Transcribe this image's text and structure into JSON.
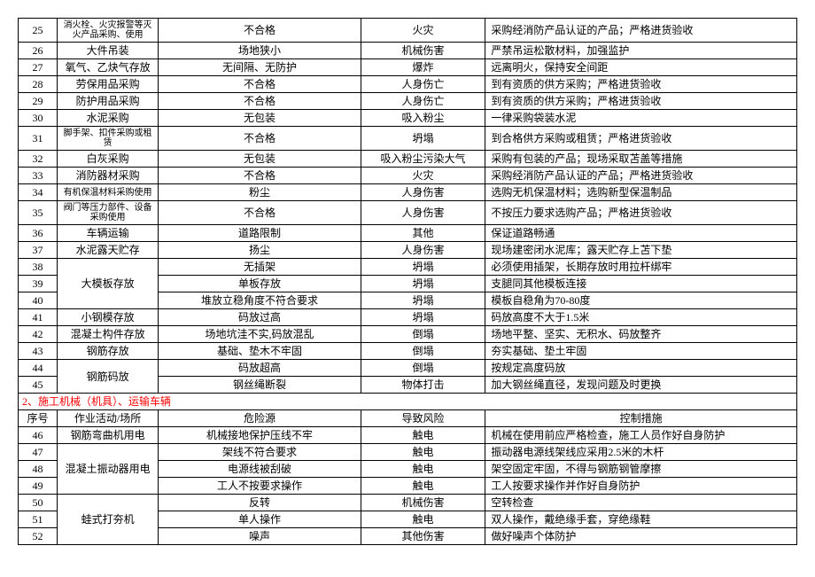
{
  "section1_rows": [
    {
      "num": "25",
      "activity": "消火栓、火灾报警等灭火产品采购、使用",
      "hazard": "不合格",
      "risk": "火灾",
      "control": "采购经消防产品认证的产品；严格进货验收",
      "activity_small": true
    },
    {
      "num": "26",
      "activity": "大件吊装",
      "hazard": "场地狭小",
      "risk": "机械伤害",
      "control": "严禁吊运松散材料，加强监护"
    },
    {
      "num": "27",
      "activity": "氧气、乙炔气存放",
      "hazard": "无间隔、无防护",
      "risk": "爆炸",
      "control": "远离明火，保持安全间距"
    },
    {
      "num": "28",
      "activity": "劳保用品采购",
      "hazard": "不合格",
      "risk": "人身伤亡",
      "control": "到有资质的供方采购；严格进货验收"
    },
    {
      "num": "29",
      "activity": "防护用品采购",
      "hazard": "不合格",
      "risk": "人身伤亡",
      "control": "到有资质的供方采购；严格进货验收"
    },
    {
      "num": "30",
      "activity": "水泥采购",
      "hazard": "无包装",
      "risk": "吸入粉尘",
      "control": "一律采购袋装水泥"
    },
    {
      "num": "31",
      "activity": "脚手架、扣件采购或租赁",
      "hazard": "不合格",
      "risk": "坍塌",
      "control": "到合格供方采购或租赁；严格进货验收",
      "activity_small": true
    },
    {
      "num": "32",
      "activity": "白灰采购",
      "hazard": "无包装",
      "risk": "吸入粉尘污染大气",
      "control": "采购有包装的产品；现场采取苫盖等措施"
    },
    {
      "num": "33",
      "activity": "消防器材采购",
      "hazard": "不合格",
      "risk": "火灾",
      "control": "采购经消防产品认证的产品；严格进货验收"
    },
    {
      "num": "34",
      "activity": "有机保温材料采购使用",
      "hazard": "粉尘",
      "risk": "人身伤害",
      "control": "选购无机保温材料；选购新型保温制品",
      "activity_small": true
    },
    {
      "num": "35",
      "activity": "阀门等压力部件、设备采购使用",
      "hazard": "不合格",
      "risk": "人身伤害",
      "control": "不按压力要求选购产品；严格进货验收",
      "activity_small": true
    },
    {
      "num": "36",
      "activity": "车辆运输",
      "hazard": "道路限制",
      "risk": "其他",
      "control": "保证道路畅通"
    },
    {
      "num": "37",
      "activity": "水泥露天贮存",
      "hazard": "扬尘",
      "risk": "人身伤害",
      "control": "现场建密闭水泥库；露天贮存上苫下垫"
    }
  ],
  "section1_merged_1": {
    "num_rows": [
      "38",
      "39",
      "40"
    ],
    "activity": "大模板存放",
    "rows": [
      {
        "hazard": "无插架",
        "risk": "坍塌",
        "control": "必须使用插架，长期存放时用拉杆绑牢"
      },
      {
        "hazard": "单板存放",
        "risk": "坍塌",
        "control": "支腿同其他模板连接"
      },
      {
        "hazard": "堆放立稳角度不符合要求",
        "risk": "坍塌",
        "control": "模板自稳角为70-80度"
      }
    ]
  },
  "section1_rows_2": [
    {
      "num": "41",
      "activity": "小钢模存放",
      "hazard": "码放过高",
      "risk": "坍塌",
      "control": "码放高度不大于1.5米"
    },
    {
      "num": "42",
      "activity": "混凝土构件存放",
      "hazard": "场地坑洼不实,码放混乱",
      "risk": "倒塌",
      "control": "场地平整、坚实、无积水、码放整齐"
    },
    {
      "num": "43",
      "activity": "钢筋存放",
      "hazard": "基础、垫木不牢固",
      "risk": "倒塌",
      "control": "夯实基础、垫土牢固"
    }
  ],
  "section1_merged_2": {
    "num_rows": [
      "44",
      "45"
    ],
    "activity": "钢筋码放",
    "rows": [
      {
        "hazard": "码放超高",
        "risk": "倒塌",
        "control": "按规定高度码放"
      },
      {
        "hazard": "钢丝绳断裂",
        "risk": "物体打击",
        "control": "加大钢丝绳直径，发现问题及时更换"
      }
    ]
  },
  "section2_title": "2、施工机械（机具）、运输车辆",
  "section2_header": {
    "num": "序号",
    "activity": "作业活动/场所",
    "hazard": "危险源",
    "risk": "导致风险",
    "control": "控制措施"
  },
  "section2_rows_1": [
    {
      "num": "46",
      "activity": "钢筋弯曲机用电",
      "hazard": "机械接地保护压线不牢",
      "risk": "触电",
      "control": "机械在使用前应严格检查，施工人员作好自身防护"
    }
  ],
  "section2_merged_1": {
    "num_rows": [
      "47",
      "48",
      "49"
    ],
    "activity": "混凝土振动器用电",
    "rows": [
      {
        "hazard": "架线不符合要求",
        "risk": "触电",
        "control": "振动器电源线架线应采用2.5米的木杆"
      },
      {
        "hazard": "电源线被刮破",
        "risk": "触电",
        "control": "架空固定牢固，不得与钢筋钢管摩擦"
      },
      {
        "hazard": "工人不按要求操作",
        "risk": "触电",
        "control": "工人按要求操作并作好自身防护"
      }
    ]
  },
  "section2_merged_2": {
    "num_rows": [
      "50",
      "51",
      "52"
    ],
    "activity": "蛙式打夯机",
    "rows": [
      {
        "hazard": "反转",
        "risk": "机械伤害",
        "control": "空转检查"
      },
      {
        "hazard": "单人操作",
        "risk": "触电",
        "control": "双人操作，戴绝缘手套，穿绝缘鞋"
      },
      {
        "hazard": "噪声",
        "risk": "其他伤害",
        "control": "做好噪声个体防护"
      }
    ]
  }
}
